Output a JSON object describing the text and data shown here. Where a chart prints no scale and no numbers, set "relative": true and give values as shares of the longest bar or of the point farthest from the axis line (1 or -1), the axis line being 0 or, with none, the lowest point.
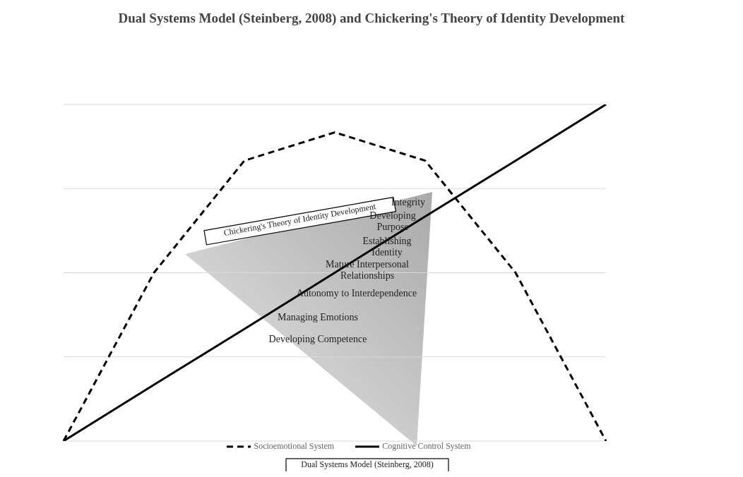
{
  "chart_data": {
    "type": "line",
    "title": "Dual Systems Model (Steinberg, 2008) and Chickering's Theory of Identity Development",
    "relative": true,
    "categories": [
      null,
      null,
      null,
      null,
      null,
      null,
      null
    ],
    "series": [
      {
        "name": "Socioemotional System",
        "color": "#000000",
        "line_style": "dashed",
        "values": [
          0,
          0.5,
          0.833,
          0.917,
          0.833,
          0.5,
          0
        ]
      },
      {
        "name": "Cognitive Control System",
        "color": "#000000",
        "line_style": "solid",
        "values": [
          0,
          0.167,
          0.333,
          0.5,
          0.667,
          0.833,
          1
        ]
      }
    ],
    "marker": "none",
    "grid": "y",
    "legend": "bottom",
    "annotations": [
      "Chickering's Theory of Identity Development",
      "Integrity",
      "Developing Purpose",
      "Establishing Identity",
      "Mature Interpersonal Relationships",
      "Autonomy to Interdependence",
      "Managing Emotions",
      "Developing Competence",
      "Dual Systems Model (Steinberg, 2008)"
    ]
  }
}
